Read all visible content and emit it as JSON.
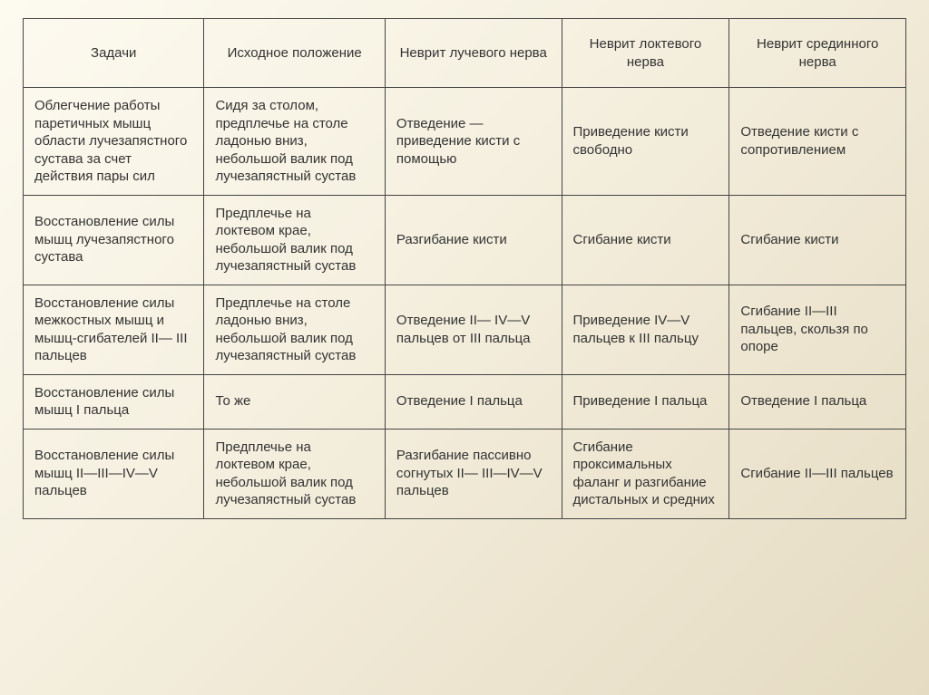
{
  "table": {
    "columns": [
      "Задачи",
      "Исходное положение",
      "Неврит лучевого нерва",
      "Неврит локтевого нерва",
      "Неврит срединного нерва"
    ],
    "rows": [
      [
        "Облегчение работы паретичных мышц области лучезапястного сустава за счет действия пары сил",
        "Сидя за столом, предплечье на столе ладонью вниз, небольшой валик под лучезапястный сустав",
        "Отведение — приведение кисти с помощью",
        "Приведение кисти свободно",
        "Отведение кисти с сопротивлением"
      ],
      [
        "Восстановление силы мышц лучезапястного сустава",
        "Предплечье на локтевом крае, небольшой валик под лучезапястный сустав",
        "Разгибание кисти",
        "Сгибание кисти",
        "Сгибание кисти"
      ],
      [
        "Восстановление силы межкостных мышц и мышц-сгибателей II— III пальцев",
        "Предплечье на столе ладонью вниз, небольшой валик под лучезапястный сустав",
        "Отведение II— IV—V пальцев от III пальца",
        "Приведение IV—V пальцев к III пальцу",
        "Сгибание II—III пальцев, скользя по опоре"
      ],
      [
        "Восстановление силы мышц I пальца",
        "То же",
        "Отведение I пальца",
        "Приведение I пальца",
        "Отведение I пальца"
      ],
      [
        "Восстановление силы мышц II—III—IV—V пальцев",
        "Предплечье на локтевом крае, небольшой валик под лучезапястный сустав",
        "Разгибание пассивно согнутых II— III—IV—V пальцев",
        "Сгибание проксимальных фаланг и разгибание дистальных и средних",
        "Сгибание II—III пальцев"
      ]
    ],
    "styling": {
      "border_color": "#444444",
      "text_color": "#333333",
      "font_family": "Arial",
      "font_size_pt": 11,
      "background_gradient": [
        "#fdfaf0",
        "#f5f0e0",
        "#ede5d0",
        "#e5dbc2"
      ],
      "header_align": "center",
      "body_align": "left",
      "col_widths_pct": [
        20.5,
        20.5,
        20,
        19,
        20
      ]
    }
  }
}
